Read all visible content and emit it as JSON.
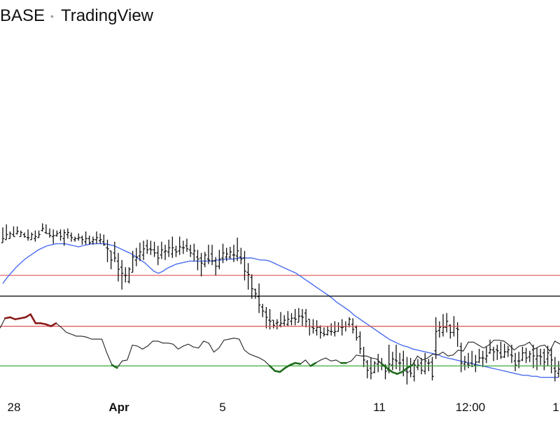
{
  "header": {
    "symbol": "BASE",
    "source": "TradingView"
  },
  "colors": {
    "price": "#111111",
    "ma": "#4a6cf0",
    "support": "#e05252",
    "overbought": "#e05252",
    "oversold": "#3cab3c",
    "osc": "#222222",
    "osc_high": "#8b1a1a",
    "osc_low": "#1d6b1d",
    "divider": "#000000"
  },
  "chart_data": [
    {
      "type": "ohlc",
      "title": "",
      "x_ticks": [
        "28",
        "Apr",
        "5",
        "11",
        "12:00",
        "1"
      ],
      "support_level": 110,
      "ylim": [
        90,
        380
      ],
      "bars": [
        [
          142,
          146,
          157,
          150
        ],
        [
          145,
          150,
          160,
          146
        ],
        [
          146,
          151,
          153,
          147
        ],
        [
          150,
          148,
          158,
          153
        ],
        [
          151,
          153,
          158,
          150
        ],
        [
          148,
          152,
          154,
          148
        ],
        [
          150,
          148,
          152,
          147
        ],
        [
          147,
          147,
          155,
          144
        ],
        [
          145,
          150,
          152,
          146
        ],
        [
          146,
          148,
          154,
          143
        ],
        [
          147,
          150,
          154,
          147
        ],
        [
          154,
          156,
          161,
          153
        ],
        [
          152,
          151,
          160,
          151
        ],
        [
          151,
          149,
          156,
          147
        ],
        [
          148,
          149,
          155,
          141
        ],
        [
          149,
          151,
          154,
          148
        ],
        [
          152,
          148,
          155,
          144
        ],
        [
          146,
          152,
          155,
          139
        ],
        [
          150,
          152,
          156,
          146
        ],
        [
          149,
          147,
          152,
          143
        ],
        [
          145,
          146,
          148,
          143
        ],
        [
          146,
          147,
          151,
          144
        ],
        [
          147,
          145,
          149,
          140
        ],
        [
          143,
          146,
          153,
          140
        ],
        [
          146,
          142,
          149,
          140
        ],
        [
          143,
          145,
          148,
          140
        ],
        [
          145,
          147,
          153,
          141
        ],
        [
          144,
          145,
          151,
          141
        ],
        [
          143,
          140,
          150,
          139
        ],
        [
          137,
          136,
          145,
          123
        ],
        [
          134,
          125,
          131,
          116
        ],
        [
          132,
          127,
          143,
          123
        ],
        [
          124,
          116,
          132,
          104
        ],
        [
          118,
          112,
          125,
          96
        ],
        [
          110,
          110,
          118,
          103
        ],
        [
          104,
          116,
          118,
          102
        ],
        [
          113,
          128,
          134,
          113
        ],
        [
          125,
          128,
          137,
          119
        ],
        [
          129,
          133,
          142,
          124
        ],
        [
          130,
          136,
          144,
          125
        ],
        [
          139,
          135,
          145,
          131
        ],
        [
          136,
          135,
          144,
          130
        ],
        [
          135,
          132,
          143,
          128
        ],
        [
          132,
          127,
          139,
          120
        ],
        [
          130,
          135,
          143,
          126
        ],
        [
          133,
          134,
          140,
          125
        ],
        [
          133,
          137,
          145,
          128
        ],
        [
          131,
          137,
          148,
          127
        ],
        [
          135,
          133,
          139,
          128
        ],
        [
          134,
          138,
          148,
          130
        ],
        [
          137,
          137,
          144,
          131
        ],
        [
          139,
          136,
          146,
          133
        ],
        [
          135,
          132,
          140,
          128
        ],
        [
          131,
          134,
          141,
          124
        ],
        [
          128,
          126,
          135,
          115
        ],
        [
          127,
          122,
          132,
          109
        ],
        [
          121,
          130,
          133,
          118
        ],
        [
          126,
          125,
          140,
          121
        ],
        [
          131,
          124,
          140,
          120
        ],
        [
          124,
          119,
          128,
          110
        ],
        [
          119,
          126,
          135,
          116
        ],
        [
          127,
          132,
          141,
          122
        ],
        [
          128,
          131,
          137,
          124
        ],
        [
          128,
          133,
          138,
          126
        ],
        [
          130,
          130,
          140,
          123
        ],
        [
          129,
          134,
          147,
          124
        ],
        [
          128,
          126,
          137,
          121
        ],
        [
          127,
          114,
          134,
          105
        ],
        [
          113,
          111,
          122,
          96
        ],
        [
          108,
          97,
          111,
          87
        ],
        [
          96,
          92,
          97,
          87
        ],
        [
          89,
          81,
          102,
          73
        ],
        [
          79,
          75,
          82,
          69
        ],
        [
          74,
          69,
          79,
          58
        ],
        [
          66,
          65,
          77,
          57
        ],
        [
          66,
          61,
          65,
          58
        ],
        [
          63,
          64,
          67,
          57
        ],
        [
          61,
          63,
          74,
          59
        ],
        [
          63,
          66,
          71,
          60
        ],
        [
          62,
          67,
          75,
          60
        ],
        [
          65,
          68,
          73,
          61
        ],
        [
          68,
          67,
          77,
          61
        ],
        [
          64,
          70,
          78,
          64
        ],
        [
          70,
          69,
          77,
          60
        ],
        [
          73,
          65,
          77,
          59
        ],
        [
          67,
          60,
          67,
          51
        ],
        [
          59,
          58,
          67,
          53
        ],
        [
          56,
          59,
          66,
          51
        ],
        [
          59,
          54,
          61,
          48
        ],
        [
          53,
          52,
          59,
          50
        ],
        [
          52,
          56,
          60,
          51
        ],
        [
          55,
          55,
          63,
          51
        ],
        [
          54,
          55,
          65,
          50
        ],
        [
          55,
          60,
          64,
          55
        ],
        [
          59,
          59,
          67,
          51
        ],
        [
          60,
          60,
          65,
          55
        ],
        [
          62,
          67,
          69,
          59
        ],
        [
          62,
          57,
          68,
          53
        ],
        [
          59,
          49,
          61,
          46
        ],
        [
          50,
          38,
          55,
          33
        ],
        [
          31,
          27,
          40,
          20
        ],
        [
          25,
          17,
          27,
          9
        ],
        [
          19,
          14,
          29,
          8
        ],
        [
          15,
          24,
          26,
          14
        ],
        [
          23,
          25,
          33,
          15
        ],
        [
          24,
          21,
          29,
          17
        ],
        [
          21,
          16,
          23,
          8
        ],
        [
          17,
          23,
          42,
          14
        ],
        [
          22,
          28,
          35,
          17
        ],
        [
          27,
          26,
          42,
          18
        ],
        [
          24,
          24,
          34,
          16
        ],
        [
          27,
          17,
          36,
          11
        ],
        [
          16,
          15,
          30,
          3
        ],
        [
          16,
          14,
          29,
          10
        ],
        [
          11,
          22,
          27,
          6
        ],
        [
          20,
          22,
          28,
          17
        ],
        [
          24,
          17,
          29,
          13
        ],
        [
          16,
          26,
          34,
          13
        ],
        [
          24,
          24,
          28,
          16
        ],
        [
          25,
          11,
          30,
          7
        ],
        [
          36,
          55,
          69,
          28
        ],
        [
          56,
          59,
          65,
          49
        ],
        [
          54,
          59,
          72,
          50
        ],
        [
          59,
          65,
          73,
          54
        ],
        [
          61,
          54,
          62,
          48
        ],
        [
          54,
          60,
          70,
          50
        ],
        [
          58,
          57,
          64,
          40
        ],
        [
          40,
          24,
          44,
          15
        ],
        [
          23,
          25,
          31,
          17
        ],
        [
          23,
          22,
          34,
          19
        ],
        [
          24,
          21,
          36,
          20
        ],
        [
          22,
          25,
          32,
          15
        ],
        [
          25,
          29,
          38,
          24
        ],
        [
          29,
          29,
          36,
          20
        ],
        [
          28,
          31,
          40,
          24
        ],
        [
          34,
          37,
          47,
          33
        ],
        [
          37,
          35,
          40,
          26
        ],
        [
          37,
          36,
          42,
          27
        ],
        [
          34,
          30,
          45,
          28
        ],
        [
          30,
          35,
          43,
          29
        ],
        [
          35,
          37,
          41,
          30
        ],
        [
          32,
          31,
          42,
          24
        ],
        [
          26,
          22,
          34,
          16
        ],
        [
          26,
          26,
          35,
          19
        ],
        [
          27,
          34,
          40,
          26
        ],
        [
          34,
          29,
          39,
          24
        ],
        [
          30,
          33,
          36,
          25
        ],
        [
          37,
          31,
          42,
          19
        ],
        [
          28,
          31,
          39,
          17
        ],
        [
          31,
          30,
          38,
          22
        ],
        [
          34,
          25,
          38,
          17
        ],
        [
          28,
          34,
          41,
          21
        ],
        [
          32,
          27,
          39,
          14
        ],
        [
          19,
          16,
          30,
          6
        ],
        [
          14,
          18,
          26,
          10
        ]
      ],
      "ma": [
        102,
        108,
        113,
        118,
        122,
        126,
        129,
        132,
        135,
        137,
        139,
        140,
        141,
        141,
        141,
        140,
        139,
        138,
        139,
        140,
        141,
        141,
        141,
        141,
        140,
        139,
        137,
        135,
        133,
        131,
        128,
        125,
        122,
        118,
        114,
        112,
        114,
        117,
        119,
        121,
        122,
        123,
        124,
        124,
        124,
        124,
        124,
        124,
        125,
        125,
        126,
        126,
        126,
        127,
        127,
        127,
        127,
        126,
        125,
        125,
        124,
        122,
        120,
        118,
        116,
        114,
        112,
        109,
        106,
        103,
        100,
        97,
        94,
        91,
        88,
        84,
        81,
        78,
        75,
        71,
        68,
        65,
        62,
        59,
        56,
        53,
        50,
        47,
        45,
        43,
        41,
        40,
        38,
        37,
        36,
        35,
        34,
        33,
        32,
        30,
        29,
        28,
        27,
        26,
        25,
        24,
        23,
        22,
        21,
        20,
        19,
        18,
        17,
        16,
        15,
        14,
        13,
        12,
        12,
        11,
        11,
        10,
        10,
        10,
        10,
        10
      ]
    },
    {
      "type": "line",
      "title": "",
      "ylim": [
        0,
        100
      ],
      "overbought": 70,
      "oversold": 30,
      "values": [
        68,
        78,
        79,
        77,
        78,
        79,
        82,
        73,
        73,
        72,
        70,
        73,
        69,
        64,
        62,
        60,
        60,
        59,
        57,
        57,
        57,
        43,
        31,
        28,
        35,
        36,
        51,
        50,
        47,
        50,
        55,
        55,
        53,
        53,
        52,
        47,
        50,
        52,
        49,
        48,
        55,
        53,
        44,
        48,
        56,
        57,
        58,
        57,
        46,
        42,
        40,
        38,
        35,
        30,
        25,
        24,
        28,
        31,
        33,
        32,
        36,
        30,
        33,
        36,
        38,
        35,
        36,
        33,
        33,
        35,
        41,
        40,
        40,
        38,
        37,
        32,
        28,
        24,
        22,
        24,
        28,
        31,
        40,
        36,
        38,
        42,
        41,
        44,
        40,
        41,
        46,
        45,
        54,
        54,
        51,
        48,
        51,
        56,
        56,
        55,
        51,
        46,
        50,
        51,
        54,
        47,
        50,
        51,
        45,
        55,
        52
      ]
    }
  ]
}
